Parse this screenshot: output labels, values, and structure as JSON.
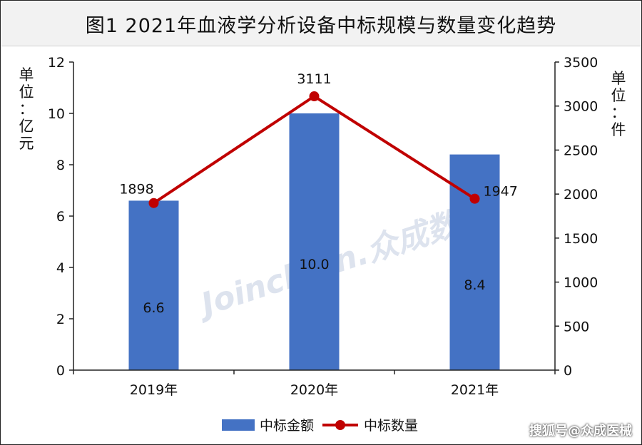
{
  "chart_data": {
    "type": "bar",
    "title": "图1  2021年血液学分析设备中标规模与数量变化趋势",
    "categories": [
      "2019年",
      "2020年",
      "2021年"
    ],
    "series": [
      {
        "name": "中标金额",
        "type": "bar",
        "axis": "left",
        "values": [
          6.6,
          10.0,
          8.4
        ],
        "labels": [
          "6.6",
          "10.0",
          "8.4"
        ],
        "color": "#4472c4"
      },
      {
        "name": "中标数量",
        "type": "line",
        "axis": "right",
        "values": [
          1898,
          3111,
          1947
        ],
        "labels": [
          "1898",
          "3111",
          "1947"
        ],
        "color": "#c00000"
      }
    ],
    "y_left": {
      "label": "单位：亿元",
      "min": 0,
      "max": 12,
      "ticks": [
        "0",
        "2",
        "4",
        "6",
        "8",
        "10",
        "12"
      ]
    },
    "y_right": {
      "label": "单位：件",
      "min": 0,
      "max": 3500,
      "ticks": [
        "0",
        "500",
        "1000",
        "1500",
        "2000",
        "2500",
        "3000",
        "3500"
      ]
    },
    "grid": false,
    "legend": "bottom"
  },
  "watermark": "Joinchain.众成数科",
  "credit": "搜狐号@众成医械"
}
